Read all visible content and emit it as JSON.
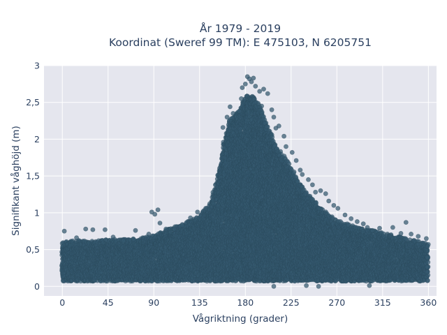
{
  "chart_data": {
    "type": "scatter",
    "title": "År 1979 - 2019",
    "subtitle": "Koordinat (Sweref 99 TM): E 475103, N 6205751",
    "xlabel": "Vågriktning (grader)",
    "ylabel": "Signifikant våghöjd (m)",
    "xlim": [
      -18,
      368
    ],
    "ylim": [
      -0.13,
      3.0
    ],
    "xticks": [
      0,
      45,
      90,
      135,
      180,
      225,
      270,
      315,
      360
    ],
    "yticks": [
      0,
      0.5,
      1,
      1.5,
      2,
      2.5,
      3
    ],
    "xtick_labels": [
      "0",
      "45",
      "90",
      "135",
      "180",
      "225",
      "270",
      "315",
      "360"
    ],
    "ytick_labels": [
      "0",
      "0,5",
      "1",
      "1,5",
      "2",
      "2,5",
      "3"
    ],
    "grid": true,
    "background": "#e5e6ee",
    "marker_color": "#34596f",
    "series": [
      {
        "envelope": {
          "x": [
            0,
            15,
            30,
            45,
            60,
            75,
            90,
            105,
            120,
            135,
            145,
            150,
            155,
            160,
            165,
            170,
            175,
            180,
            185,
            190,
            195,
            200,
            205,
            210,
            215,
            220,
            225,
            230,
            240,
            250,
            260,
            270,
            285,
            300,
            315,
            330,
            345,
            360
          ],
          "upper": [
            0.52,
            0.55,
            0.54,
            0.56,
            0.56,
            0.58,
            0.62,
            0.7,
            0.78,
            0.88,
            1.05,
            1.25,
            1.55,
            1.95,
            2.2,
            2.25,
            2.35,
            2.5,
            2.55,
            2.45,
            2.35,
            2.15,
            2.0,
            1.85,
            1.75,
            1.65,
            1.55,
            1.4,
            1.2,
            1.05,
            0.92,
            0.82,
            0.75,
            0.7,
            0.65,
            0.6,
            0.55,
            0.5
          ],
          "lower": 0.07
        },
        "outliers": [
          {
            "x": 2,
            "y": 0.75
          },
          {
            "x": 14,
            "y": 0.66
          },
          {
            "x": 23,
            "y": 0.78
          },
          {
            "x": 30,
            "y": 0.77
          },
          {
            "x": 42,
            "y": 0.77
          },
          {
            "x": 50,
            "y": 0.67
          },
          {
            "x": 60,
            "y": 0.62
          },
          {
            "x": 70,
            "y": 0.64
          },
          {
            "x": 72,
            "y": 0.76
          },
          {
            "x": 85,
            "y": 0.71
          },
          {
            "x": 88,
            "y": 1.01
          },
          {
            "x": 91,
            "y": 0.98
          },
          {
            "x": 94,
            "y": 1.04
          },
          {
            "x": 96,
            "y": 0.86
          },
          {
            "x": 102,
            "y": 0.78
          },
          {
            "x": 110,
            "y": 0.78
          },
          {
            "x": 118,
            "y": 0.83
          },
          {
            "x": 126,
            "y": 0.93
          },
          {
            "x": 133,
            "y": 1.01
          },
          {
            "x": 141,
            "y": 1.06
          },
          {
            "x": 158,
            "y": 2.16
          },
          {
            "x": 162,
            "y": 2.3
          },
          {
            "x": 165,
            "y": 2.44
          },
          {
            "x": 168,
            "y": 2.35
          },
          {
            "x": 174,
            "y": 2.38
          },
          {
            "x": 176,
            "y": 2.55
          },
          {
            "x": 177,
            "y": 2.7
          },
          {
            "x": 180,
            "y": 2.75
          },
          {
            "x": 182,
            "y": 2.85
          },
          {
            "x": 184,
            "y": 2.82
          },
          {
            "x": 186,
            "y": 2.78
          },
          {
            "x": 188,
            "y": 2.83
          },
          {
            "x": 190,
            "y": 2.72
          },
          {
            "x": 194,
            "y": 2.65
          },
          {
            "x": 198,
            "y": 2.68
          },
          {
            "x": 202,
            "y": 2.62
          },
          {
            "x": 196,
            "y": 2.45
          },
          {
            "x": 206,
            "y": 2.4
          },
          {
            "x": 208,
            "y": 2.3
          },
          {
            "x": 210,
            "y": 2.15
          },
          {
            "x": 213,
            "y": 2.18
          },
          {
            "x": 218,
            "y": 2.04
          },
          {
            "x": 220,
            "y": 1.9
          },
          {
            "x": 226,
            "y": 1.82
          },
          {
            "x": 230,
            "y": 1.71
          },
          {
            "x": 234,
            "y": 1.58
          },
          {
            "x": 236,
            "y": 1.52
          },
          {
            "x": 242,
            "y": 1.45
          },
          {
            "x": 246,
            "y": 1.38
          },
          {
            "x": 249,
            "y": 1.28
          },
          {
            "x": 254,
            "y": 1.3
          },
          {
            "x": 259,
            "y": 1.26
          },
          {
            "x": 262,
            "y": 1.16
          },
          {
            "x": 267,
            "y": 1.1
          },
          {
            "x": 271,
            "y": 1.06
          },
          {
            "x": 278,
            "y": 0.97
          },
          {
            "x": 284,
            "y": 0.92
          },
          {
            "x": 290,
            "y": 0.88
          },
          {
            "x": 296,
            "y": 0.85
          },
          {
            "x": 300,
            "y": 0.8
          },
          {
            "x": 305,
            "y": 0.76
          },
          {
            "x": 312,
            "y": 0.79
          },
          {
            "x": 325,
            "y": 0.8
          },
          {
            "x": 333,
            "y": 0.72
          },
          {
            "x": 338,
            "y": 0.87
          },
          {
            "x": 343,
            "y": 0.71
          },
          {
            "x": 350,
            "y": 0.68
          },
          {
            "x": 358,
            "y": 0.65
          },
          {
            "x": 208,
            "y": 0.0
          },
          {
            "x": 240,
            "y": 0.01
          },
          {
            "x": 252,
            "y": 0.0
          },
          {
            "x": 302,
            "y": 0.01
          }
        ]
      }
    ]
  }
}
